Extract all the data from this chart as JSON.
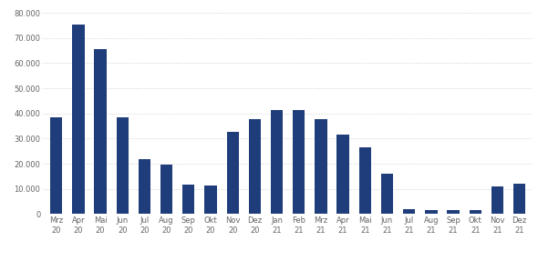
{
  "categories": [
    "Mrz\n20",
    "Apr\n20",
    "Mai\n20",
    "Jun\n20",
    "Jul\n20",
    "Aug\n20",
    "Sep\n20",
    "Okt\n20",
    "Nov\n20",
    "Dez\n20",
    "Jan\n21",
    "Feb\n21",
    "Mrz\n21",
    "Apr\n21",
    "Mai\n21",
    "Jun\n21",
    "Jul\n21",
    "Aug\n21",
    "Sep\n21",
    "Okt\n21",
    "Nov\n21",
    "Dez\n21"
  ],
  "values": [
    38500,
    75500,
    65500,
    38500,
    22000,
    19500,
    11800,
    11500,
    32500,
    37800,
    41500,
    41500,
    37800,
    31500,
    26500,
    16000,
    2000,
    1700,
    1700,
    1700,
    10800,
    12200
  ],
  "bar_color": "#1F3D7A",
  "ylim": [
    0,
    82000
  ],
  "yticks": [
    0,
    10000,
    20000,
    30000,
    40000,
    50000,
    60000,
    70000,
    80000
  ],
  "grid_color": "#C8C8C8",
  "background_color": "#FFFFFF",
  "tick_label_fontsize": 6.0,
  "bar_width": 0.55
}
